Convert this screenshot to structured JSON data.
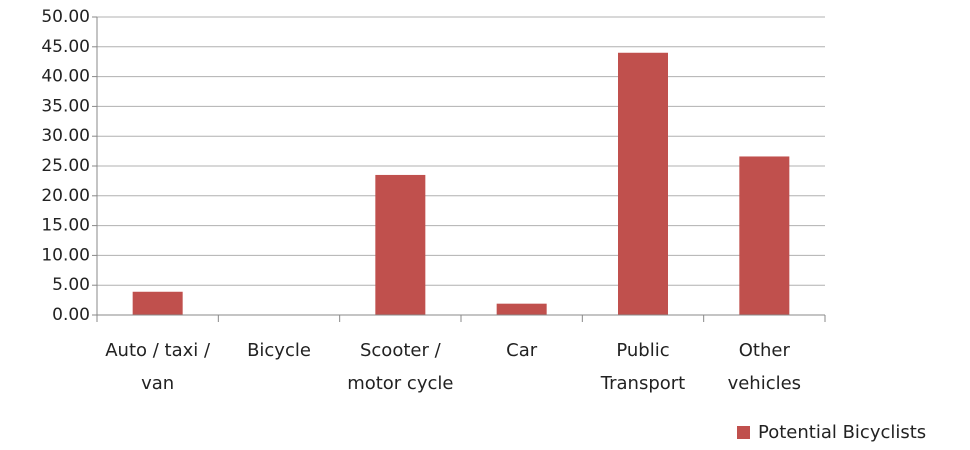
{
  "chart_data": {
    "type": "bar",
    "categories": [
      "Auto / taxi / van",
      "Bicycle",
      "Scooter / motor cycle",
      "Car",
      "Public Transport",
      "Other vehicles"
    ],
    "series": [
      {
        "name": "Potential Bicyclists",
        "color": "#c0504d",
        "values": [
          3.9,
          0,
          23.5,
          1.9,
          44,
          26.6
        ]
      }
    ],
    "ylim": [
      0,
      50
    ],
    "yticks": [
      {
        "value": 0,
        "label": "0.00"
      },
      {
        "value": 5,
        "label": "5.00"
      },
      {
        "value": 10,
        "label": "10.00"
      },
      {
        "value": 15,
        "label": "15.00"
      },
      {
        "value": 20,
        "label": "20.00"
      },
      {
        "value": 25,
        "label": "25.00"
      },
      {
        "value": 30,
        "label": "30.00"
      },
      {
        "value": 35,
        "label": "35.00"
      },
      {
        "value": 40,
        "label": "40.00"
      },
      {
        "value": 45,
        "label": "45.00"
      },
      {
        "value": 50,
        "label": "50.00"
      }
    ],
    "grid": true,
    "legend": "bottom-right"
  }
}
